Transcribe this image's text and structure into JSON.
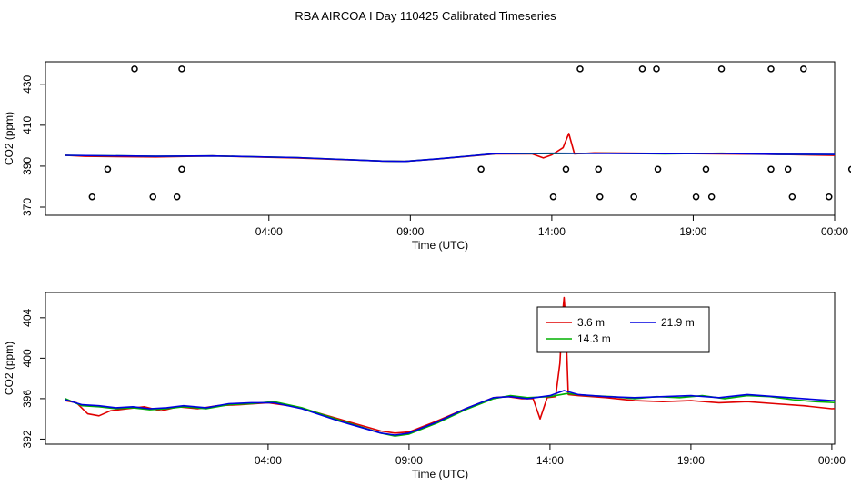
{
  "page_title": "RBA AIRCOA I  Day 110425  Calibrated Timeseries",
  "colors": {
    "series_3_6": "#e00000",
    "series_14_3": "#00b000",
    "series_21_9": "#0000e0",
    "markers": "#000000"
  },
  "chart_data": [
    {
      "type": "line",
      "title": "",
      "xlabel": "Time (UTC)",
      "ylabel": "CO2 (ppm)",
      "xlim": [
        -3.9,
        24.0
      ],
      "ylim": [
        366,
        441
      ],
      "xticks": [
        {
          "value": 4,
          "label": "04:00"
        },
        {
          "value": 9,
          "label": "09:00"
        },
        {
          "value": 14,
          "label": "14:00"
        },
        {
          "value": 19,
          "label": "19:00"
        },
        {
          "value": 24,
          "label": "00:00"
        }
      ],
      "yticks": [
        {
          "value": 370,
          "label": "370"
        },
        {
          "value": 390,
          "label": "390"
        },
        {
          "value": 410,
          "label": "410"
        },
        {
          "value": 430,
          "label": "430"
        }
      ],
      "markers": {
        "style": "open-circle",
        "points": [
          {
            "x": -0.75,
            "y": 437.5
          },
          {
            "x": 0.92,
            "y": 437.5
          },
          {
            "x": 15.0,
            "y": 437.5
          },
          {
            "x": 17.2,
            "y": 437.5
          },
          {
            "x": 17.7,
            "y": 437.5
          },
          {
            "x": 20.0,
            "y": 437.5
          },
          {
            "x": 21.75,
            "y": 437.5
          },
          {
            "x": 22.9,
            "y": 437.5
          },
          {
            "x": 25.05,
            "y": 437.5
          },
          {
            "x": 25.6,
            "y": 437.5
          },
          {
            "x": -1.7,
            "y": 388.5
          },
          {
            "x": 0.92,
            "y": 388.5
          },
          {
            "x": 11.5,
            "y": 388.5
          },
          {
            "x": 14.5,
            "y": 388.5
          },
          {
            "x": 15.65,
            "y": 388.5
          },
          {
            "x": 17.75,
            "y": 388.5
          },
          {
            "x": 19.45,
            "y": 388.5
          },
          {
            "x": 21.75,
            "y": 388.5
          },
          {
            "x": 22.35,
            "y": 388.5
          },
          {
            "x": 24.6,
            "y": 388.5
          },
          {
            "x": 25.7,
            "y": 388.5
          },
          {
            "x": -2.25,
            "y": 375
          },
          {
            "x": -0.1,
            "y": 375
          },
          {
            "x": 0.75,
            "y": 375
          },
          {
            "x": 14.05,
            "y": 375
          },
          {
            "x": 15.7,
            "y": 375
          },
          {
            "x": 16.9,
            "y": 375
          },
          {
            "x": 19.1,
            "y": 375
          },
          {
            "x": 19.65,
            "y": 375
          },
          {
            "x": 22.5,
            "y": 375
          },
          {
            "x": 23.8,
            "y": 375
          },
          {
            "x": 25.7,
            "y": 375
          }
        ]
      },
      "series": [
        {
          "values": [
            [
              -3.2,
              395.3
            ],
            [
              -2.5,
              394.8
            ],
            [
              0.0,
              394.5
            ],
            [
              2.0,
              395.0
            ],
            [
              5.0,
              394.0
            ],
            [
              8.0,
              392.5
            ],
            [
              8.8,
              392.3
            ],
            [
              10.0,
              393.5
            ],
            [
              12.0,
              396.0
            ],
            [
              13.3,
              396.0
            ],
            [
              13.7,
              394.0
            ],
            [
              14.0,
              395.5
            ],
            [
              14.4,
              399.0
            ],
            [
              14.6,
              406.0
            ],
            [
              14.8,
              396.0
            ],
            [
              15.5,
              396.5
            ],
            [
              20.0,
              396.0
            ],
            [
              22.0,
              395.8
            ],
            [
              25.0,
              395.0
            ],
            [
              25.7,
              394.8
            ]
          ]
        },
        {
          "values": [
            [
              -3.2,
              395.3
            ],
            [
              0.0,
              394.8
            ],
            [
              2.0,
              395.0
            ],
            [
              5.0,
              394.2
            ],
            [
              8.0,
              392.5
            ],
            [
              8.8,
              392.3
            ],
            [
              10.0,
              393.6
            ],
            [
              12.0,
              396.1
            ],
            [
              14.0,
              396.1
            ],
            [
              16.0,
              396.3
            ],
            [
              18.0,
              396.0
            ],
            [
              20.0,
              396.3
            ],
            [
              22.0,
              395.8
            ],
            [
              25.0,
              395.6
            ],
            [
              25.7,
              395.5
            ]
          ]
        },
        {
          "values": [
            [
              -3.2,
              395.3
            ],
            [
              0.0,
              394.8
            ],
            [
              2.0,
              395.0
            ],
            [
              5.0,
              394.2
            ],
            [
              8.0,
              392.5
            ],
            [
              8.8,
              392.3
            ],
            [
              10.0,
              393.6
            ],
            [
              12.0,
              396.1
            ],
            [
              14.0,
              396.3
            ],
            [
              16.0,
              396.2
            ],
            [
              18.0,
              396.1
            ],
            [
              20.0,
              396.2
            ],
            [
              22.0,
              395.8
            ],
            [
              25.0,
              395.7
            ],
            [
              25.7,
              395.5
            ]
          ]
        }
      ]
    },
    {
      "type": "line",
      "title": "",
      "xlabel": "Time (UTC)",
      "ylabel": "CO2 (ppm)",
      "xlim": [
        -3.9,
        24.1
      ],
      "ylim": [
        391.5,
        406.5
      ],
      "xticks": [
        {
          "value": 4,
          "label": "04:00"
        },
        {
          "value": 9,
          "label": "09:00"
        },
        {
          "value": 14,
          "label": "14:00"
        },
        {
          "value": 19,
          "label": "19:00"
        },
        {
          "value": 24,
          "label": "00:00"
        }
      ],
      "yticks": [
        {
          "value": 392,
          "label": "392"
        },
        {
          "value": 396,
          "label": "396"
        },
        {
          "value": 400,
          "label": "400"
        },
        {
          "value": 404,
          "label": "404"
        }
      ],
      "legend": {
        "position": "top-right",
        "entries": [
          {
            "label": "3.6 m",
            "color": "#e00000"
          },
          {
            "label": "14.3 m",
            "color": "#00b000"
          },
          {
            "label": "21.9 m",
            "color": "#0000e0"
          }
        ]
      },
      "series": [
        {
          "name": "3.6 m",
          "values": [
            [
              -3.2,
              395.8
            ],
            [
              -2.8,
              395.6
            ],
            [
              -2.4,
              394.5
            ],
            [
              -2.0,
              394.3
            ],
            [
              -1.6,
              394.8
            ],
            [
              -1.0,
              395.0
            ],
            [
              -0.4,
              395.2
            ],
            [
              0.2,
              394.8
            ],
            [
              0.8,
              395.2
            ],
            [
              1.5,
              395.0
            ],
            [
              2.2,
              395.3
            ],
            [
              3.0,
              395.4
            ],
            [
              4.0,
              395.6
            ],
            [
              5.0,
              395.2
            ],
            [
              6.5,
              394.0
            ],
            [
              8.0,
              392.8
            ],
            [
              8.5,
              392.6
            ],
            [
              9.0,
              392.7
            ],
            [
              10.0,
              393.8
            ],
            [
              11.0,
              395.0
            ],
            [
              12.0,
              396.1
            ],
            [
              12.5,
              396.2
            ],
            [
              13.0,
              396.0
            ],
            [
              13.4,
              396.0
            ],
            [
              13.65,
              394.0
            ],
            [
              13.9,
              396.1
            ],
            [
              14.2,
              396.2
            ],
            [
              14.35,
              399.5
            ],
            [
              14.45,
              404.5
            ],
            [
              14.5,
              406.0
            ],
            [
              14.55,
              404.0
            ],
            [
              14.65,
              396.4
            ],
            [
              15.0,
              396.3
            ],
            [
              16.0,
              396.1
            ],
            [
              17.0,
              395.8
            ],
            [
              18.0,
              395.7
            ],
            [
              19.0,
              395.8
            ],
            [
              20.0,
              395.6
            ],
            [
              21.0,
              395.7
            ],
            [
              22.0,
              395.5
            ],
            [
              23.0,
              395.3
            ],
            [
              24.0,
              395.0
            ],
            [
              25.0,
              395.2
            ],
            [
              25.8,
              395.2
            ]
          ]
        },
        {
          "name": "14.3 m",
          "values": [
            [
              -3.2,
              396.0
            ],
            [
              -2.6,
              395.3
            ],
            [
              -2.0,
              395.2
            ],
            [
              -1.4,
              395.0
            ],
            [
              -0.8,
              395.1
            ],
            [
              -0.2,
              394.9
            ],
            [
              0.4,
              395.0
            ],
            [
              1.0,
              395.2
            ],
            [
              1.8,
              395.0
            ],
            [
              2.6,
              395.4
            ],
            [
              3.4,
              395.5
            ],
            [
              4.2,
              395.7
            ],
            [
              5.2,
              395.1
            ],
            [
              6.5,
              393.9
            ],
            [
              8.0,
              392.6
            ],
            [
              8.5,
              392.3
            ],
            [
              9.0,
              392.5
            ],
            [
              10.0,
              393.6
            ],
            [
              11.0,
              394.9
            ],
            [
              12.0,
              396.0
            ],
            [
              12.6,
              396.3
            ],
            [
              13.2,
              396.1
            ],
            [
              14.0,
              396.2
            ],
            [
              14.6,
              396.5
            ],
            [
              15.4,
              396.3
            ],
            [
              16.2,
              396.2
            ],
            [
              17.0,
              396.0
            ],
            [
              17.8,
              396.2
            ],
            [
              18.6,
              396.1
            ],
            [
              19.4,
              396.3
            ],
            [
              20.2,
              396.0
            ],
            [
              21.0,
              396.3
            ],
            [
              21.8,
              396.2
            ],
            [
              22.6,
              395.9
            ],
            [
              23.4,
              395.7
            ],
            [
              24.2,
              395.6
            ],
            [
              25.0,
              395.9
            ],
            [
              25.8,
              395.8
            ]
          ]
        },
        {
          "name": "21.9 m",
          "values": [
            [
              -3.2,
              395.9
            ],
            [
              -2.6,
              395.4
            ],
            [
              -2.0,
              395.3
            ],
            [
              -1.4,
              395.1
            ],
            [
              -0.8,
              395.2
            ],
            [
              -0.2,
              395.0
            ],
            [
              0.4,
              395.1
            ],
            [
              1.0,
              395.3
            ],
            [
              1.8,
              395.1
            ],
            [
              2.6,
              395.5
            ],
            [
              3.4,
              395.6
            ],
            [
              4.2,
              395.6
            ],
            [
              5.2,
              395.0
            ],
            [
              6.5,
              393.8
            ],
            [
              8.0,
              392.6
            ],
            [
              8.5,
              392.4
            ],
            [
              9.0,
              392.6
            ],
            [
              10.0,
              393.7
            ],
            [
              11.0,
              395.0
            ],
            [
              12.0,
              396.1
            ],
            [
              12.6,
              396.2
            ],
            [
              13.2,
              396.0
            ],
            [
              14.0,
              396.3
            ],
            [
              14.5,
              396.8
            ],
            [
              15.0,
              396.4
            ],
            [
              16.0,
              396.2
            ],
            [
              17.0,
              396.1
            ],
            [
              18.0,
              396.2
            ],
            [
              19.0,
              396.3
            ],
            [
              20.0,
              396.1
            ],
            [
              21.0,
              396.4
            ],
            [
              22.0,
              396.2
            ],
            [
              23.0,
              396.0
            ],
            [
              24.0,
              395.8
            ],
            [
              25.0,
              395.8
            ],
            [
              25.8,
              395.8
            ]
          ]
        }
      ]
    }
  ]
}
